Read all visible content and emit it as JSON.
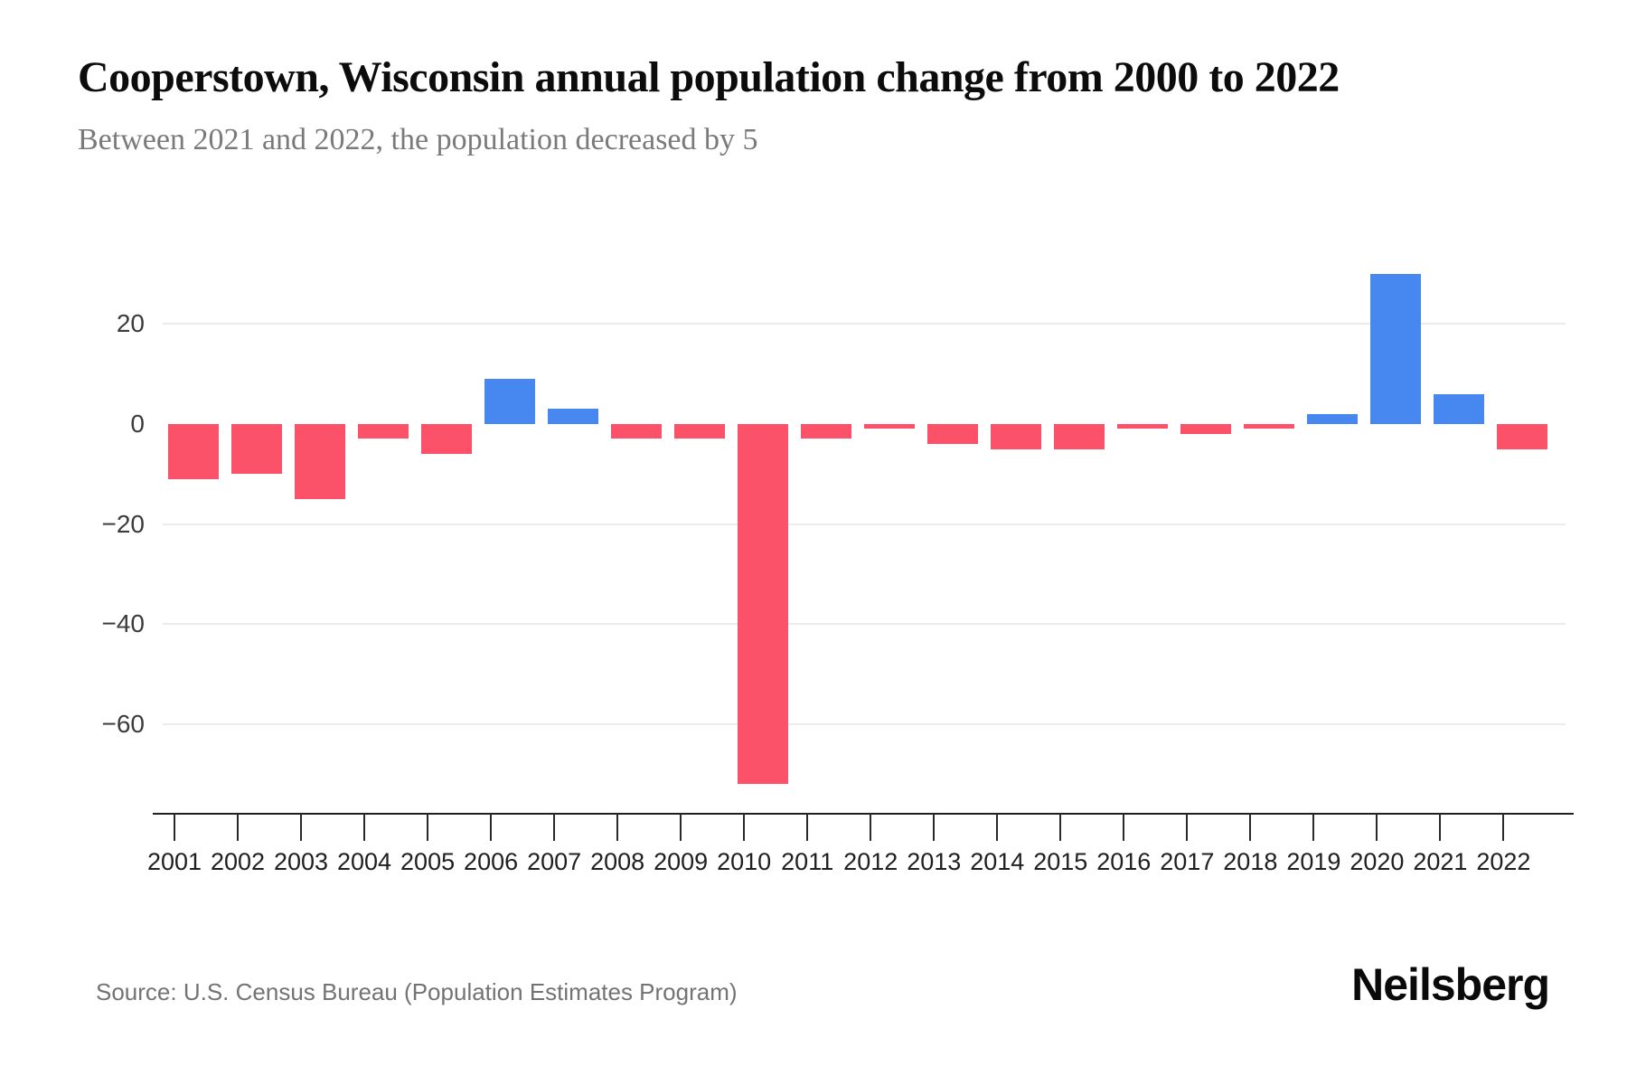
{
  "header": {
    "title": "Cooperstown, Wisconsin annual population change from 2000 to 2022",
    "subtitle": "Between 2021 and 2022, the population decreased by 5"
  },
  "footer": {
    "source": "Source: U.S. Census Bureau (Population Estimates Program)",
    "brand": "Neilsberg"
  },
  "colors": {
    "positive_bar": "#4687f0",
    "negative_bar": "#fb5169",
    "gridline": "#ebebeb",
    "axis": "#1f1f1f",
    "title_text": "#0c0c0c",
    "subtitle_text": "#7a7a7a"
  },
  "chart_data": {
    "type": "bar",
    "title": "Cooperstown, Wisconsin annual population change from 2000 to 2022",
    "subtitle": "Between 2021 and 2022, the population decreased by 5",
    "xlabel": "",
    "ylabel": "",
    "categories": [
      "2001",
      "2002",
      "2003",
      "2004",
      "2005",
      "2006",
      "2007",
      "2008",
      "2009",
      "2010",
      "2011",
      "2012",
      "2013",
      "2014",
      "2015",
      "2016",
      "2017",
      "2018",
      "2019",
      "2020",
      "2021",
      "2022"
    ],
    "values": [
      -11,
      -10,
      -15,
      -3,
      -6,
      9,
      3,
      -3,
      -3,
      -72,
      -3,
      -1,
      -4,
      -5,
      -5,
      -1,
      -2,
      -1,
      2,
      30,
      6,
      -5
    ],
    "y_ticks": [
      20,
      0,
      -20,
      -40,
      -60
    ],
    "gridlines_at": [
      20,
      -20,
      -40,
      -60
    ],
    "ylim": [
      -78,
      36
    ],
    "legend": "none",
    "grid": "horizontal-only",
    "positive_color": "#4687f0",
    "negative_color": "#fb5169"
  }
}
